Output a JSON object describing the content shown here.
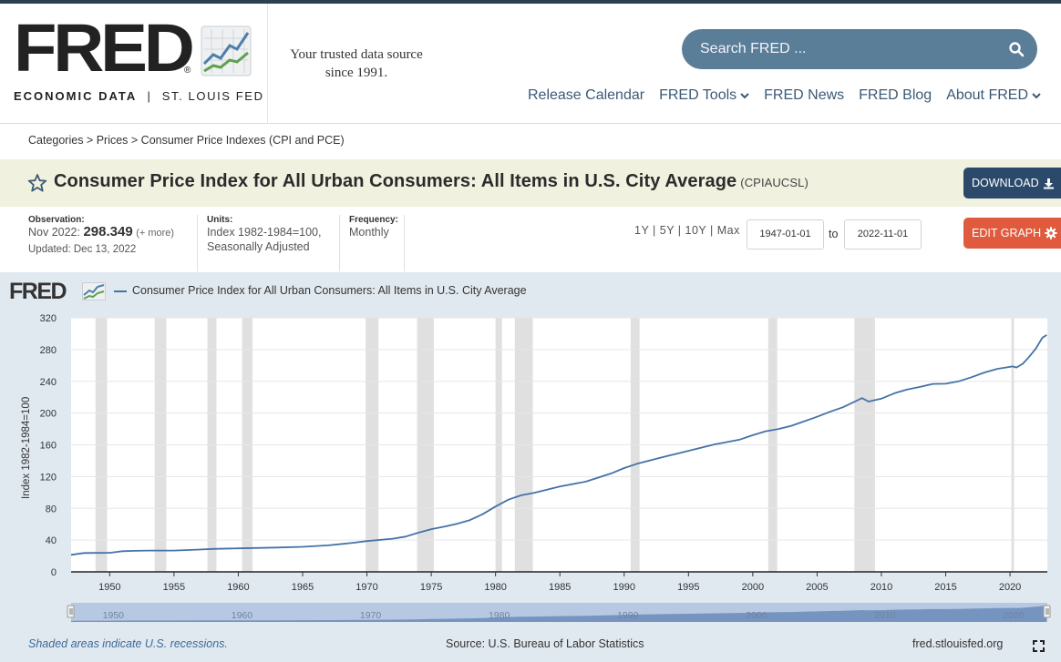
{
  "header": {
    "logo": "FRED",
    "logo_sub_left": "ECONOMIC DATA",
    "logo_sub_sep": "|",
    "logo_sub_right": "ST. LOUIS FED",
    "tagline_line1": "Your trusted data source",
    "tagline_line2": "since 1991.",
    "search_placeholder": "Search FRED ...",
    "nav": [
      "Release Calendar",
      "FRED Tools",
      "FRED News",
      "FRED Blog",
      "About FRED"
    ]
  },
  "breadcrumb": "Categories > Prices > Consumer Price Indexes (CPI and PCE)",
  "series": {
    "title": "Consumer Price Index for All Urban Consumers: All Items in U.S. City Average",
    "code": "(CPIAUCSL)",
    "download_label": "DOWNLOAD",
    "edit_label": "EDIT GRAPH"
  },
  "meta": {
    "observation_label": "Observation:",
    "observation_date": "Nov 2022:",
    "observation_value": "298.349",
    "observation_more": "(+ more)",
    "updated": "Updated: Dec 13, 2022",
    "units_label": "Units:",
    "units_line1": "Index 1982-1984=100,",
    "units_line2": "Seasonally Adjusted",
    "frequency_label": "Frequency:",
    "frequency": "Monthly"
  },
  "range": {
    "links": "1Y | 5Y | 10Y | Max",
    "start": "1947-01-01",
    "to": "to",
    "end": "2022-11-01"
  },
  "chart_caption": {
    "mini_logo": "FRED",
    "legend": "Consumer Price Index for All Urban Consumers: All Items in U.S. City Average",
    "ylabel": "Index 1982-1984=100"
  },
  "chart_data": {
    "type": "line",
    "title": "",
    "xlabel": "",
    "ylabel": "Index 1982-1984=100",
    "xlim": [
      1947,
      2022.9
    ],
    "ylim": [
      0,
      320
    ],
    "y_ticks": [
      0,
      40,
      80,
      120,
      160,
      200,
      240,
      280,
      320
    ],
    "x_ticks": [
      1950,
      1955,
      1960,
      1965,
      1970,
      1975,
      1980,
      1985,
      1990,
      1995,
      2000,
      2005,
      2010,
      2015,
      2020
    ],
    "navigator_ticks": [
      1950,
      1960,
      1970,
      1980,
      1990,
      2000,
      2010,
      2020
    ],
    "grid": "horizontal",
    "legend_position": "top-left",
    "series": [
      {
        "name": "Consumer Price Index for All Urban Consumers: All Items in U.S. City Average",
        "color": "#4572a7",
        "x": [
          1947,
          1948,
          1949,
          1950,
          1951,
          1952,
          1953,
          1955,
          1957,
          1958,
          1960,
          1963,
          1965,
          1967,
          1969,
          1970,
          1972,
          1973,
          1974,
          1975,
          1976,
          1977,
          1978,
          1979,
          1980,
          1981,
          1982,
          1983,
          1985,
          1987,
          1989,
          1990,
          1991,
          1993,
          1995,
          1997,
          1999,
          2000,
          2001,
          2002,
          2003,
          2005,
          2006,
          2007,
          2008.5,
          2009,
          2010,
          2011,
          2012,
          2013,
          2014,
          2015,
          2016,
          2017,
          2018,
          2019,
          2020.2,
          2020.5,
          2021,
          2021.5,
          2022,
          2022.5,
          2022.85
        ],
        "values": [
          21.5,
          23.7,
          23.8,
          24.0,
          26.0,
          26.5,
          26.8,
          26.8,
          28.1,
          28.9,
          29.6,
          30.6,
          31.5,
          33.4,
          36.7,
          38.8,
          41.8,
          44.4,
          49.3,
          53.8,
          56.9,
          60.6,
          65.2,
          72.6,
          82.4,
          90.9,
          96.5,
          99.6,
          107.6,
          113.6,
          124.0,
          130.7,
          136.2,
          144.5,
          152.4,
          160.5,
          166.6,
          172.2,
          177.1,
          179.9,
          184.0,
          195.3,
          201.6,
          207.3,
          218.8,
          214.5,
          218.1,
          224.9,
          229.6,
          233.0,
          236.7,
          237.0,
          240.0,
          245.1,
          251.1,
          255.7,
          258.7,
          257.4,
          262.2,
          271.0,
          281.1,
          294.7,
          298.3
        ]
      }
    ],
    "recessions": [
      [
        1948.9,
        1949.8
      ],
      [
        1953.5,
        1954.4
      ],
      [
        1957.6,
        1958.3
      ],
      [
        1960.3,
        1961.1
      ],
      [
        1969.9,
        1970.9
      ],
      [
        1973.9,
        1975.2
      ],
      [
        1980.0,
        1980.5
      ],
      [
        1981.5,
        1982.9
      ],
      [
        1990.5,
        1991.2
      ],
      [
        2001.2,
        2001.9
      ],
      [
        2007.9,
        2009.5
      ],
      [
        2020.1,
        2020.3
      ]
    ]
  },
  "footer": {
    "recessions_note": "Shaded areas indicate U.S. recessions.",
    "source": "Source: U.S. Bureau of Labor Statistics",
    "site": "fred.stlouisfed.org"
  },
  "colors": {
    "nav_text": "#3b5a75",
    "search_bg": "#5a7d98",
    "download_bg": "#2b4a6b",
    "edit_bg": "#e05b3e",
    "title_band": "#f0f1df",
    "chart_bg": "#e1e9f0",
    "recession_band": "#e0e0e0",
    "series_line": "#4572a7"
  },
  "icons": [
    "search-icon",
    "chevron-down-icon",
    "star-icon",
    "download-icon",
    "gear-icon",
    "expand-icon"
  ]
}
